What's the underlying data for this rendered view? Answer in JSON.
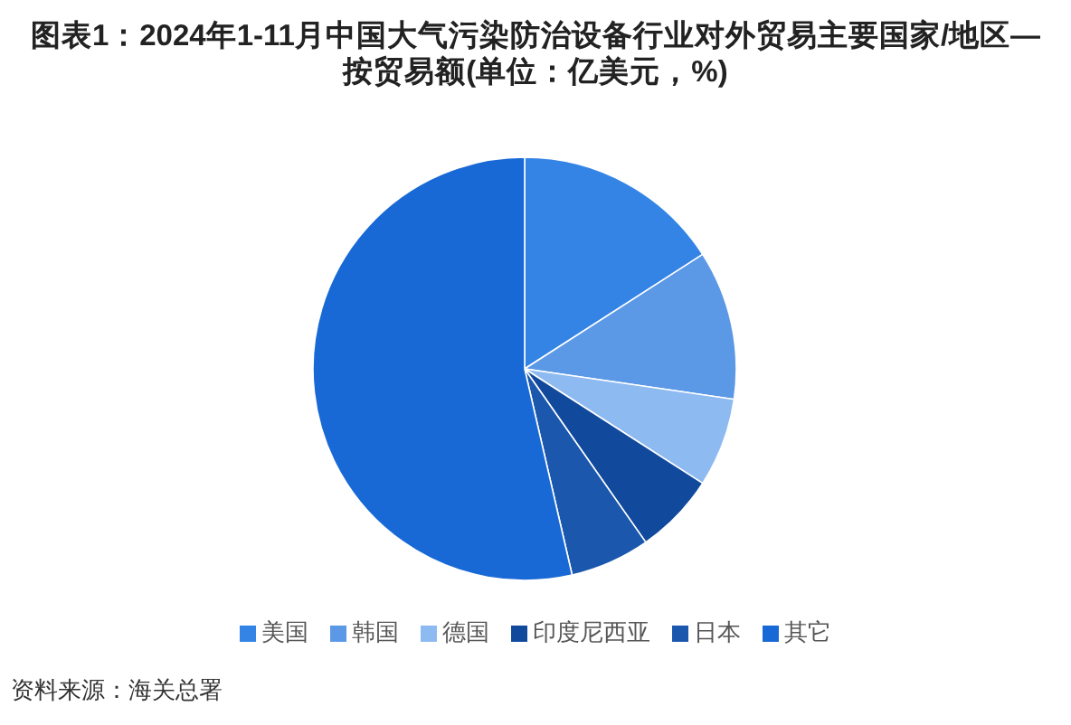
{
  "chart_data": {
    "type": "pie",
    "title": "图表1：2024年1-11月中国大气污染防治设备行业对外贸易主要国家/地区—按贸易额(单位：亿美元，%)",
    "categories": [
      "美国",
      "韩国",
      "德国",
      "印度尼西亚",
      "日本",
      "其它"
    ],
    "values": [
      15.9,
      11.4,
      6.8,
      6.2,
      6.1,
      53.6
    ],
    "colors": [
      "#3484e6",
      "#5b98e6",
      "#8ebaf2",
      "#114a9c",
      "#1a57ad",
      "#1869d6"
    ],
    "legend": "bottom",
    "annotations": [
      "资料来源：海关总署"
    ]
  }
}
